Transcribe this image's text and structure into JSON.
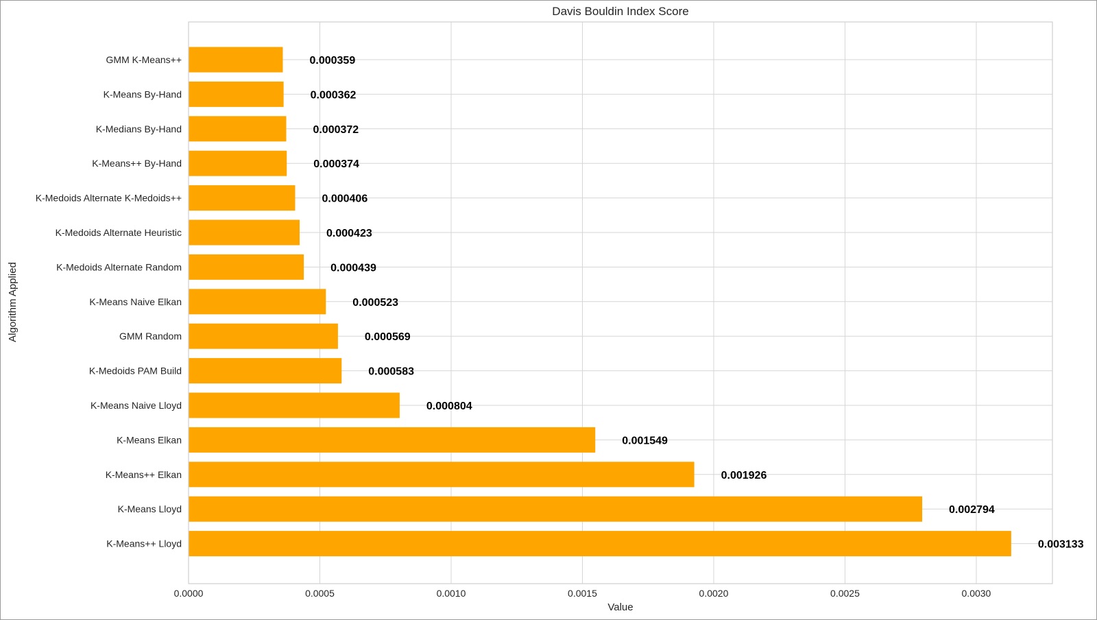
{
  "chart_data": {
    "type": "bar",
    "orientation": "horizontal",
    "title": "Davis Bouldin Index Score",
    "xlabel": "Value",
    "ylabel": "Algorithm Applied",
    "xlim": [
      0,
      0.00329
    ],
    "xticks": [
      0,
      0.0005,
      0.001,
      0.0015,
      0.002,
      0.0025,
      0.003
    ],
    "xtick_labels": [
      "0.0000",
      "0.0005",
      "0.0010",
      "0.0015",
      "0.0020",
      "0.0025",
      "0.0030"
    ],
    "grid": true,
    "bar_color": "#FFA500",
    "categories": [
      "GMM K-Means++",
      "K-Means By-Hand",
      "K-Medians By-Hand",
      "K-Means++ By-Hand",
      "K-Medoids Alternate K-Medoids++",
      "K-Medoids Alternate Heuristic",
      "K-Medoids Alternate Random",
      "K-Means Naive Elkan",
      "GMM Random",
      "K-Medoids PAM Build",
      "K-Means Naive Lloyd",
      "K-Means Elkan",
      "K-Means++ Elkan",
      "K-Means Lloyd",
      "K-Means++ Lloyd"
    ],
    "values": [
      0.000359,
      0.000362,
      0.000372,
      0.000374,
      0.000406,
      0.000423,
      0.000439,
      0.000523,
      0.000569,
      0.000583,
      0.000804,
      0.001549,
      0.001926,
      0.002794,
      0.003133
    ],
    "value_labels": [
      "0.000359",
      "0.000362",
      "0.000372",
      "0.000374",
      "0.000406",
      "0.000423",
      "0.000439",
      "0.000523",
      "0.000569",
      "0.000583",
      "0.000804",
      "0.001549",
      "0.001926",
      "0.002794",
      "0.003133"
    ]
  }
}
